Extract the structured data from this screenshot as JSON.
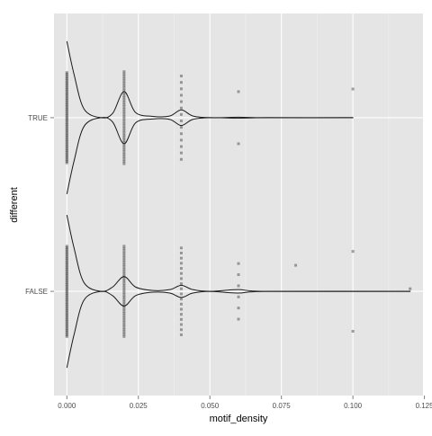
{
  "chart_data": {
    "type": "violin",
    "xlabel": "motif_density",
    "ylabel": "different",
    "xlim": [
      -0.0045,
      0.1245
    ],
    "x_ticks": [
      0.0,
      0.025,
      0.05,
      0.075,
      0.1,
      0.125
    ],
    "x_tick_labels": [
      "0.000",
      "0.025",
      "0.050",
      "0.075",
      "0.100",
      "0.125"
    ],
    "categories": [
      "FALSE",
      "TRUE"
    ],
    "grid": true,
    "background": "#e5e5e5",
    "colors": {
      "panel": "#e5e5e5",
      "grid_major": "#ffffff",
      "grid_minor": "#f2f2f2",
      "violin_line": "#1a1a1a",
      "point": "#333333"
    },
    "violins": [
      {
        "category": "TRUE",
        "max_x": 0.1,
        "density": [
          {
            "x": 0.0,
            "w": 0.88
          },
          {
            "x": 0.0025,
            "w": 0.5
          },
          {
            "x": 0.006,
            "w": 0.1
          },
          {
            "x": 0.012,
            "w": 0.0
          },
          {
            "x": 0.016,
            "w": 0.05
          },
          {
            "x": 0.02,
            "w": 0.3
          },
          {
            "x": 0.024,
            "w": 0.06
          },
          {
            "x": 0.03,
            "w": 0.015
          },
          {
            "x": 0.036,
            "w": 0.02
          },
          {
            "x": 0.04,
            "w": 0.09
          },
          {
            "x": 0.044,
            "w": 0.02
          },
          {
            "x": 0.05,
            "w": 0.0
          },
          {
            "x": 0.06,
            "w": 0.005
          },
          {
            "x": 0.07,
            "w": 0.0
          },
          {
            "x": 0.1,
            "w": 0.0
          }
        ],
        "points": [
          {
            "x": 0.0,
            "n": 60,
            "spread": 0.52
          },
          {
            "x": 0.02,
            "n": 40,
            "spread": 0.53
          },
          {
            "x": 0.04,
            "n": 14,
            "spread": 0.48
          },
          {
            "x": 0.06,
            "n": 2,
            "spread": 0.3
          },
          {
            "x": 0.1,
            "n": 1,
            "spread": 0.33
          }
        ]
      },
      {
        "category": "FALSE",
        "max_x": 0.12,
        "density": [
          {
            "x": 0.0,
            "w": 0.88
          },
          {
            "x": 0.0025,
            "w": 0.5
          },
          {
            "x": 0.006,
            "w": 0.1
          },
          {
            "x": 0.012,
            "w": 0.0
          },
          {
            "x": 0.016,
            "w": 0.05
          },
          {
            "x": 0.02,
            "w": 0.17
          },
          {
            "x": 0.024,
            "w": 0.05
          },
          {
            "x": 0.03,
            "w": 0.01
          },
          {
            "x": 0.036,
            "w": 0.02
          },
          {
            "x": 0.04,
            "w": 0.07
          },
          {
            "x": 0.044,
            "w": 0.02
          },
          {
            "x": 0.05,
            "w": 0.0
          },
          {
            "x": 0.06,
            "w": 0.02
          },
          {
            "x": 0.07,
            "w": 0.0
          },
          {
            "x": 0.12,
            "w": 0.0
          }
        ],
        "points": [
          {
            "x": 0.0,
            "n": 60,
            "spread": 0.52
          },
          {
            "x": 0.02,
            "n": 40,
            "spread": 0.52
          },
          {
            "x": 0.04,
            "n": 18,
            "spread": 0.5
          },
          {
            "x": 0.06,
            "n": 6,
            "spread": 0.32
          },
          {
            "x": 0.08,
            "n": 1,
            "spread": 0.3
          },
          {
            "x": 0.1,
            "n": 2,
            "spread": 0.46
          },
          {
            "x": 0.12,
            "n": 1,
            "spread": 0.03
          }
        ]
      }
    ]
  }
}
